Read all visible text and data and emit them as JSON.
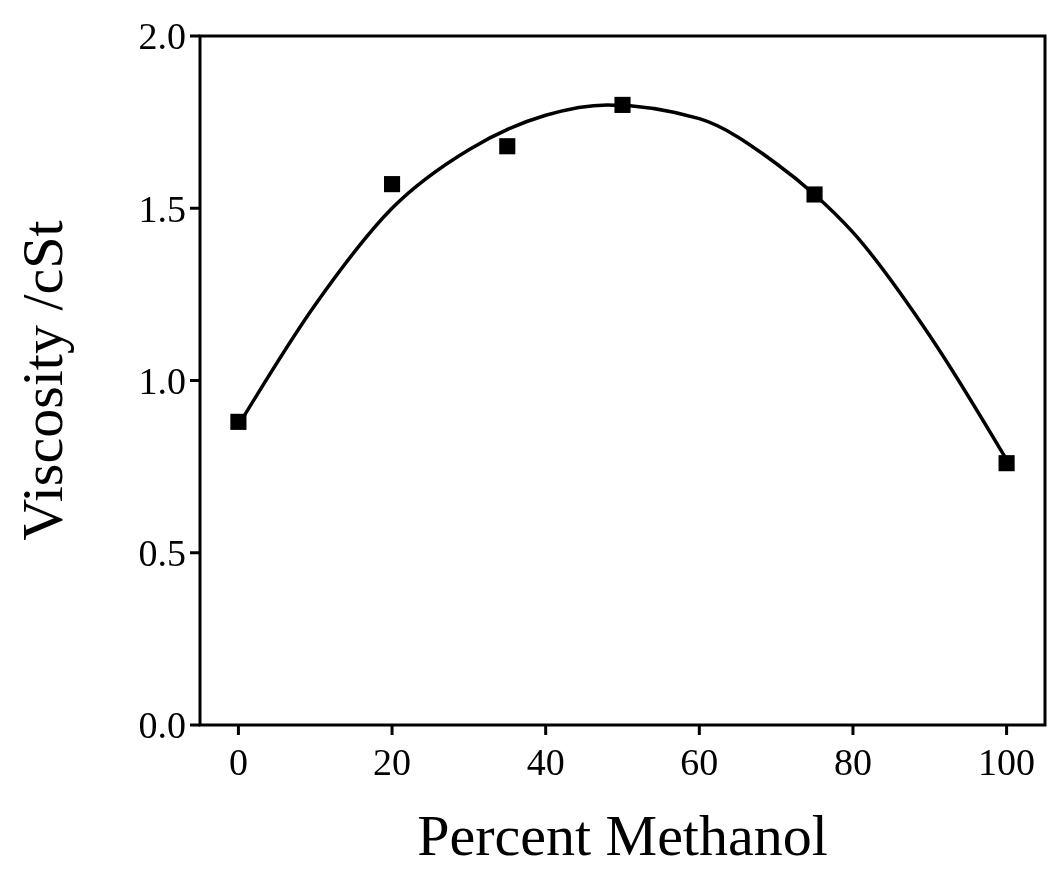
{
  "chart_data": {
    "type": "scatter",
    "xlabel": "Percent Methanol",
    "ylabel": "Viscosity /cSt",
    "xlim": [
      -5,
      105
    ],
    "xticks": [
      0,
      20,
      40,
      60,
      80,
      100
    ],
    "ylim": [
      0,
      2
    ],
    "yticks": [
      {
        "value": 0,
        "label": "0.0"
      },
      {
        "value": 0.5,
        "label": "0.5"
      },
      {
        "value": 1,
        "label": "1.0"
      },
      {
        "value": 1.5,
        "label": "1.5"
      },
      {
        "value": 2,
        "label": "2.0"
      }
    ],
    "grid": false,
    "series": [
      {
        "color": "#000000",
        "marker": "square",
        "x": [
          0,
          20,
          35,
          50,
          75,
          100
        ],
        "values": [
          0.88,
          1.57,
          1.68,
          1.8,
          1.54,
          0.76
        ]
      },
      {
        "type": "line",
        "color": "#000000",
        "marker": "none",
        "line_style": "solid",
        "x": [
          0,
          10,
          20,
          30,
          40,
          48,
          60,
          70,
          75,
          80,
          90,
          100
        ],
        "values": [
          0.87,
          1.22,
          1.5,
          1.67,
          1.77,
          1.8,
          1.76,
          1.63,
          1.54,
          1.43,
          1.13,
          0.77
        ]
      }
    ]
  }
}
